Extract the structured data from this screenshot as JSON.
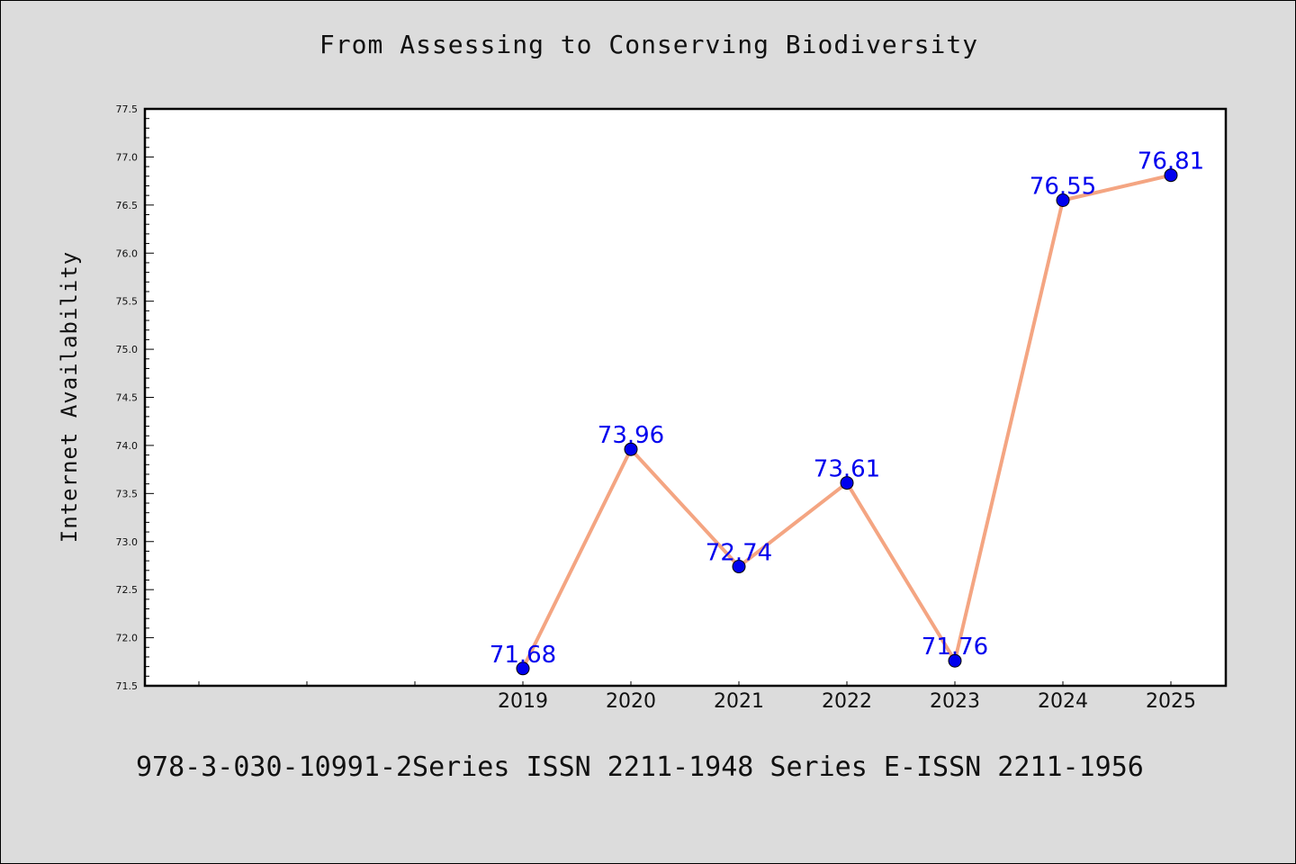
{
  "colors": {
    "background": "#dcdcdc",
    "plot_background": "#ffffff",
    "line": "#f4a582",
    "marker": "#0000ee",
    "data_label": "#0000ee"
  },
  "footer_text": "978-3-030-10991-2Series ISSN 2211-1948 Series E-ISSN 2211-1956",
  "chart_data": {
    "type": "line",
    "title": "From Assessing to Conserving Biodiversity",
    "xlabel": "",
    "ylabel": "Internet Availability",
    "x": [
      "2019",
      "2020",
      "2021",
      "2022",
      "2023",
      "2024",
      "2025"
    ],
    "series": [
      {
        "values": [
          71.68,
          73.96,
          72.74,
          73.61,
          71.76,
          76.55,
          76.81
        ],
        "data_labels": [
          "71.68",
          "73.96",
          "72.74",
          "73.61",
          "71.76",
          "76.55",
          "76.81"
        ]
      }
    ],
    "ylim": [
      71.5,
      77.5
    ],
    "y_ticks": [
      "71.5",
      "72.0",
      "72.5",
      "73.0",
      "73.5",
      "74.0",
      "74.5",
      "75.0",
      "75.5",
      "76.0",
      "76.5",
      "77.0",
      "77.5"
    ],
    "grid": false,
    "legend": "none"
  }
}
